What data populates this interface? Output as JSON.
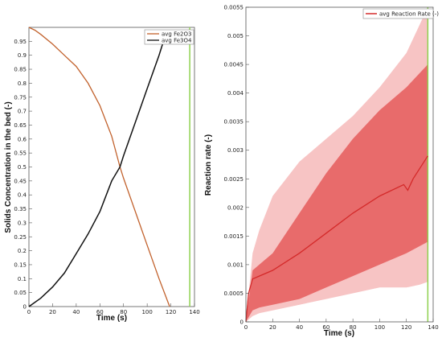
{
  "chart_data": [
    {
      "type": "line",
      "xlabel": "Time (s)",
      "ylabel": "Solids Concentration in the bed (-)",
      "xlim": [
        0,
        140
      ],
      "ylim": [
        0,
        1
      ],
      "x_ticks": [
        "0",
        "20",
        "40",
        "60",
        "80",
        "100",
        "120",
        "140"
      ],
      "y_ticks": [
        "0",
        "0.05",
        "0.1",
        "0.15",
        "0.2",
        "0.25",
        "0.3",
        "0.35",
        "0.4",
        "0.45",
        "0.5",
        "0.55",
        "0.6",
        "0.65",
        "0.7",
        "0.75",
        "0.8",
        "0.85",
        "0.9",
        "0.95"
      ],
      "legend_position": "top-right",
      "vertical_marker": {
        "x": 136,
        "color": "#8fd14f"
      },
      "series": [
        {
          "name": "avg Fe2O3",
          "color": "#c2622d",
          "x": [
            0,
            5,
            10,
            20,
            30,
            40,
            50,
            60,
            70,
            77,
            80,
            90,
            100,
            110,
            119
          ],
          "y": [
            1.0,
            0.99,
            0.975,
            0.94,
            0.9,
            0.86,
            0.8,
            0.72,
            0.61,
            0.5,
            0.46,
            0.34,
            0.22,
            0.1,
            0.0
          ]
        },
        {
          "name": "avg Fe3O4",
          "color": "#111111",
          "x": [
            0,
            10,
            20,
            30,
            40,
            50,
            60,
            70,
            77,
            80,
            90,
            100,
            110,
            116
          ],
          "y": [
            0.0,
            0.03,
            0.07,
            0.12,
            0.19,
            0.26,
            0.34,
            0.45,
            0.5,
            0.54,
            0.66,
            0.78,
            0.9,
            0.98
          ]
        }
      ]
    },
    {
      "type": "area",
      "xlabel": "Time (s)",
      "ylabel": "Reaction rate (-)",
      "xlim": [
        0,
        140
      ],
      "ylim": [
        0,
        0.0055
      ],
      "x_ticks": [
        "0",
        "20",
        "40",
        "60",
        "80",
        "100",
        "120",
        "140"
      ],
      "y_ticks": [
        "0",
        "0.0005",
        "0.001",
        "0.0015",
        "0.002",
        "0.0025",
        "0.003",
        "0.0035",
        "0.004",
        "0.0045",
        "0.005",
        "0.0055"
      ],
      "legend_position": "top-right",
      "vertical_marker": {
        "x": 136,
        "color": "#8fd14f"
      },
      "series": [
        {
          "name": "avg Reaction Rate (-)",
          "color": "#d42a2a",
          "x": [
            0,
            2,
            5,
            10,
            20,
            40,
            60,
            80,
            100,
            118,
            121,
            125,
            136
          ],
          "y": [
            0.0,
            0.0005,
            0.00075,
            0.0008,
            0.0009,
            0.0012,
            0.00155,
            0.0019,
            0.0022,
            0.0024,
            0.0023,
            0.0025,
            0.0029
          ]
        }
      ],
      "inner_band": {
        "color": "#e86b6b",
        "x": [
          0,
          5,
          10,
          20,
          40,
          60,
          80,
          100,
          120,
          136
        ],
        "lower": [
          0.0,
          0.0002,
          0.00025,
          0.0003,
          0.0004,
          0.0006,
          0.0008,
          0.001,
          0.0012,
          0.0014
        ],
        "upper": [
          0.0,
          0.0009,
          0.001,
          0.0012,
          0.0019,
          0.0026,
          0.0032,
          0.0037,
          0.0041,
          0.0045
        ]
      },
      "outer_band": {
        "color": "#f7c4c4",
        "x": [
          0,
          5,
          10,
          20,
          40,
          60,
          80,
          100,
          120,
          130,
          136
        ],
        "lower": [
          0.0,
          0.0001,
          0.00015,
          0.0002,
          0.0003,
          0.0004,
          0.0005,
          0.0006,
          0.0006,
          0.00065,
          0.0007
        ],
        "upper": [
          0.0,
          0.0012,
          0.0016,
          0.0022,
          0.0028,
          0.0032,
          0.0036,
          0.0041,
          0.0047,
          0.0052,
          0.0055
        ]
      }
    }
  ]
}
